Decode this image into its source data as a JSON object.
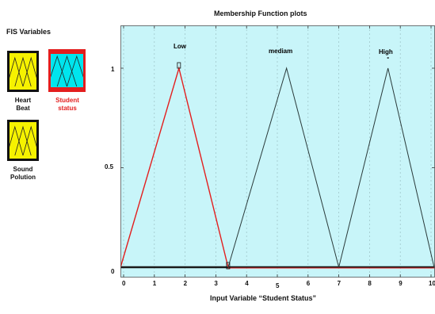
{
  "sidebar": {
    "title": "FIS Variables",
    "variables": [
      {
        "label_line1": "Heart",
        "label_line2": "Beat",
        "fill": "#f6f200",
        "selected": false
      },
      {
        "label_line1": "Student",
        "label_line2": "status",
        "fill": "#00e5ee",
        "selected": true
      },
      {
        "label_line1": "Sound",
        "label_line2": "Polution",
        "fill": "#f6f200",
        "selected": false
      }
    ]
  },
  "plot": {
    "title": "Membership Function plots",
    "xlabel": "Input Variable “Student Status”",
    "background": "#c8f5f9",
    "selected_color": "#e31e1e",
    "line_color": "#2a3a3a",
    "yticks": [
      "0",
      "0.5",
      "1"
    ],
    "xticks": [
      "0",
      "1",
      "2",
      "3",
      "4",
      "5",
      "6",
      "7",
      "8",
      "9",
      "10"
    ]
  },
  "chart_data": {
    "type": "line",
    "title": "Membership Function plots",
    "xlabel": "Input Variable “Student Status”",
    "ylabel": "",
    "xlim": [
      0,
      10
    ],
    "ylim": [
      0,
      1
    ],
    "series": [
      {
        "name": "Low",
        "x": [
          -0.1,
          1.8,
          3.4
        ],
        "y": [
          0,
          1,
          0
        ],
        "selected": true
      },
      {
        "name": "mediam",
        "x": [
          3.4,
          5.3,
          7.0
        ],
        "y": [
          0,
          1,
          0
        ],
        "selected": false
      },
      {
        "name": "High",
        "x": [
          7.0,
          8.6,
          10.1
        ],
        "y": [
          0,
          1,
          0
        ],
        "selected": false
      }
    ]
  }
}
